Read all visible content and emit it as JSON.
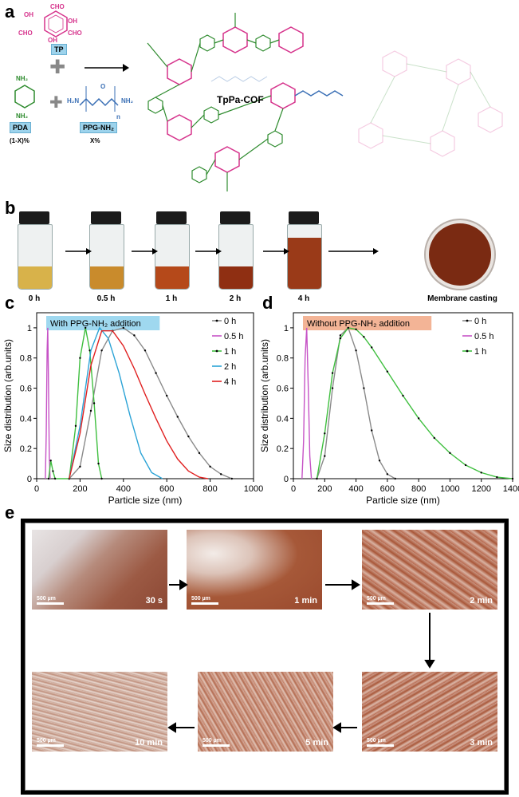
{
  "panels": {
    "a": "a",
    "b": "b",
    "c": "c",
    "d": "d",
    "e": "e"
  },
  "scheme": {
    "tp_label": "TP",
    "pda_label": "PDA",
    "ppg_label": "PPG-NH₂",
    "pda_fraction": "(1-X)%",
    "ppg_fraction": "X%",
    "cof_label": "TpPa-COF",
    "tp_groups": {
      "cho": "CHO",
      "oh": "OH"
    },
    "pda_group": "NH₂",
    "ppg_groups": {
      "h2n": "H₂N",
      "nh2": "NH₂",
      "o": "O",
      "n": "n"
    },
    "colors": {
      "tp": "#d6338c",
      "pda": "#2e8b2e",
      "ppg": "#3a6fb5",
      "cof_text": "#e0561b"
    }
  },
  "vials": {
    "captions": [
      "0 h",
      "0.5 h",
      "1 h",
      "2 h",
      "4 h"
    ],
    "final_caption": "Membrane casting",
    "liquid_colors": [
      "#d8b24a",
      "#c98b2c",
      "#b5491a",
      "#8f2f12",
      "#9a3a18"
    ],
    "dish_color": "#7a2a12"
  },
  "chart_data": [
    {
      "type": "line",
      "title": "With PPG-NH₂ addition",
      "title_bg": "#9fd8ef",
      "xlabel": "Particle size (nm)",
      "ylabel": "Size distribution (arb.units)",
      "xlim": [
        0,
        1000
      ],
      "ylim": [
        0,
        1.1
      ],
      "xticks": [
        0,
        200,
        400,
        600,
        800,
        1000
      ],
      "yticks": [
        0,
        0.2,
        0.4,
        0.6,
        0.8,
        1
      ],
      "ytick_labels": [
        "0",
        "0.2",
        "0.4",
        "0.6",
        "0.8",
        "1"
      ],
      "legend_position": "top-right",
      "series": [
        {
          "name": "0 h",
          "color": "#8a8a8a",
          "markers": true,
          "x": [
            150,
            200,
            250,
            300,
            350,
            400,
            450,
            500,
            550,
            600,
            650,
            700,
            750,
            800,
            850,
            900
          ],
          "y": [
            0,
            0.08,
            0.45,
            0.85,
            0.98,
            1.0,
            0.95,
            0.85,
            0.7,
            0.55,
            0.41,
            0.28,
            0.17,
            0.08,
            0.03,
            0
          ]
        },
        {
          "name": "0.5 h",
          "color": "#c653c6",
          "markers": false,
          "x": [
            40,
            44,
            48,
            51,
            54,
            58,
            62
          ],
          "y": [
            0,
            0.3,
            0.85,
            1.0,
            0.7,
            0.15,
            0
          ]
        },
        {
          "name": "1 h",
          "color": "#3fbf3f",
          "markers": true,
          "x": [
            55,
            65,
            75,
            85,
            150,
            180,
            200,
            225,
            245,
            265,
            285,
            300
          ],
          "y": [
            0,
            0.12,
            0.05,
            0,
            0,
            0.35,
            0.8,
            1.0,
            0.85,
            0.5,
            0.1,
            0
          ]
        },
        {
          "name": "2 h",
          "color": "#2ba3d6",
          "markers": false,
          "x": [
            150,
            200,
            250,
            290,
            330,
            380,
            430,
            480,
            530,
            580
          ],
          "y": [
            0,
            0.35,
            0.85,
            1.0,
            0.93,
            0.7,
            0.42,
            0.17,
            0.04,
            0
          ]
        },
        {
          "name": "4 h",
          "color": "#e02020",
          "markers": false,
          "x": [
            150,
            200,
            250,
            300,
            350,
            400,
            450,
            500,
            550,
            600,
            650,
            700,
            750,
            790
          ],
          "y": [
            0,
            0.3,
            0.75,
            0.98,
            0.98,
            0.88,
            0.73,
            0.56,
            0.4,
            0.25,
            0.13,
            0.05,
            0.01,
            0
          ]
        }
      ]
    },
    {
      "type": "line",
      "title": "Without PPG-NH₂ addition",
      "title_bg": "#f3b496",
      "xlabel": "Particle size (nm)",
      "ylabel": "Size distribution (arb.units)",
      "xlim": [
        0,
        1400
      ],
      "ylim": [
        0,
        1.1
      ],
      "xticks": [
        0,
        200,
        400,
        600,
        800,
        1000,
        1200,
        1400
      ],
      "yticks": [
        0,
        0.2,
        0.4,
        0.6,
        0.8,
        1
      ],
      "ytick_labels": [
        "0",
        "0.2",
        "0.4",
        "0.6",
        "0.8",
        "1"
      ],
      "legend_position": "top-right",
      "series": [
        {
          "name": "0 h",
          "color": "#8a8a8a",
          "markers": true,
          "x": [
            150,
            200,
            250,
            300,
            350,
            400,
            450,
            500,
            550,
            600,
            650
          ],
          "y": [
            0,
            0.15,
            0.6,
            0.95,
            1.0,
            0.85,
            0.6,
            0.32,
            0.12,
            0.03,
            0
          ]
        },
        {
          "name": "0.5 h",
          "color": "#c653c6",
          "markers": false,
          "x": [
            55,
            65,
            75,
            85,
            95,
            105,
            115
          ],
          "y": [
            0,
            0.25,
            0.8,
            1.0,
            0.6,
            0.15,
            0
          ]
        },
        {
          "name": "1 h",
          "color": "#3fbf3f",
          "markers": true,
          "x": [
            150,
            200,
            250,
            300,
            350,
            400,
            450,
            500,
            600,
            700,
            800,
            900,
            1000,
            1100,
            1200,
            1300,
            1400
          ],
          "y": [
            0,
            0.3,
            0.7,
            0.93,
            1.0,
            0.99,
            0.94,
            0.87,
            0.71,
            0.55,
            0.4,
            0.27,
            0.17,
            0.09,
            0.04,
            0.01,
            0
          ]
        }
      ]
    }
  ],
  "micrographs": {
    "scale_label": "500 µm",
    "times": [
      "30 s",
      "1 min",
      "2 min",
      "3 min",
      "5 min",
      "10 min"
    ]
  }
}
